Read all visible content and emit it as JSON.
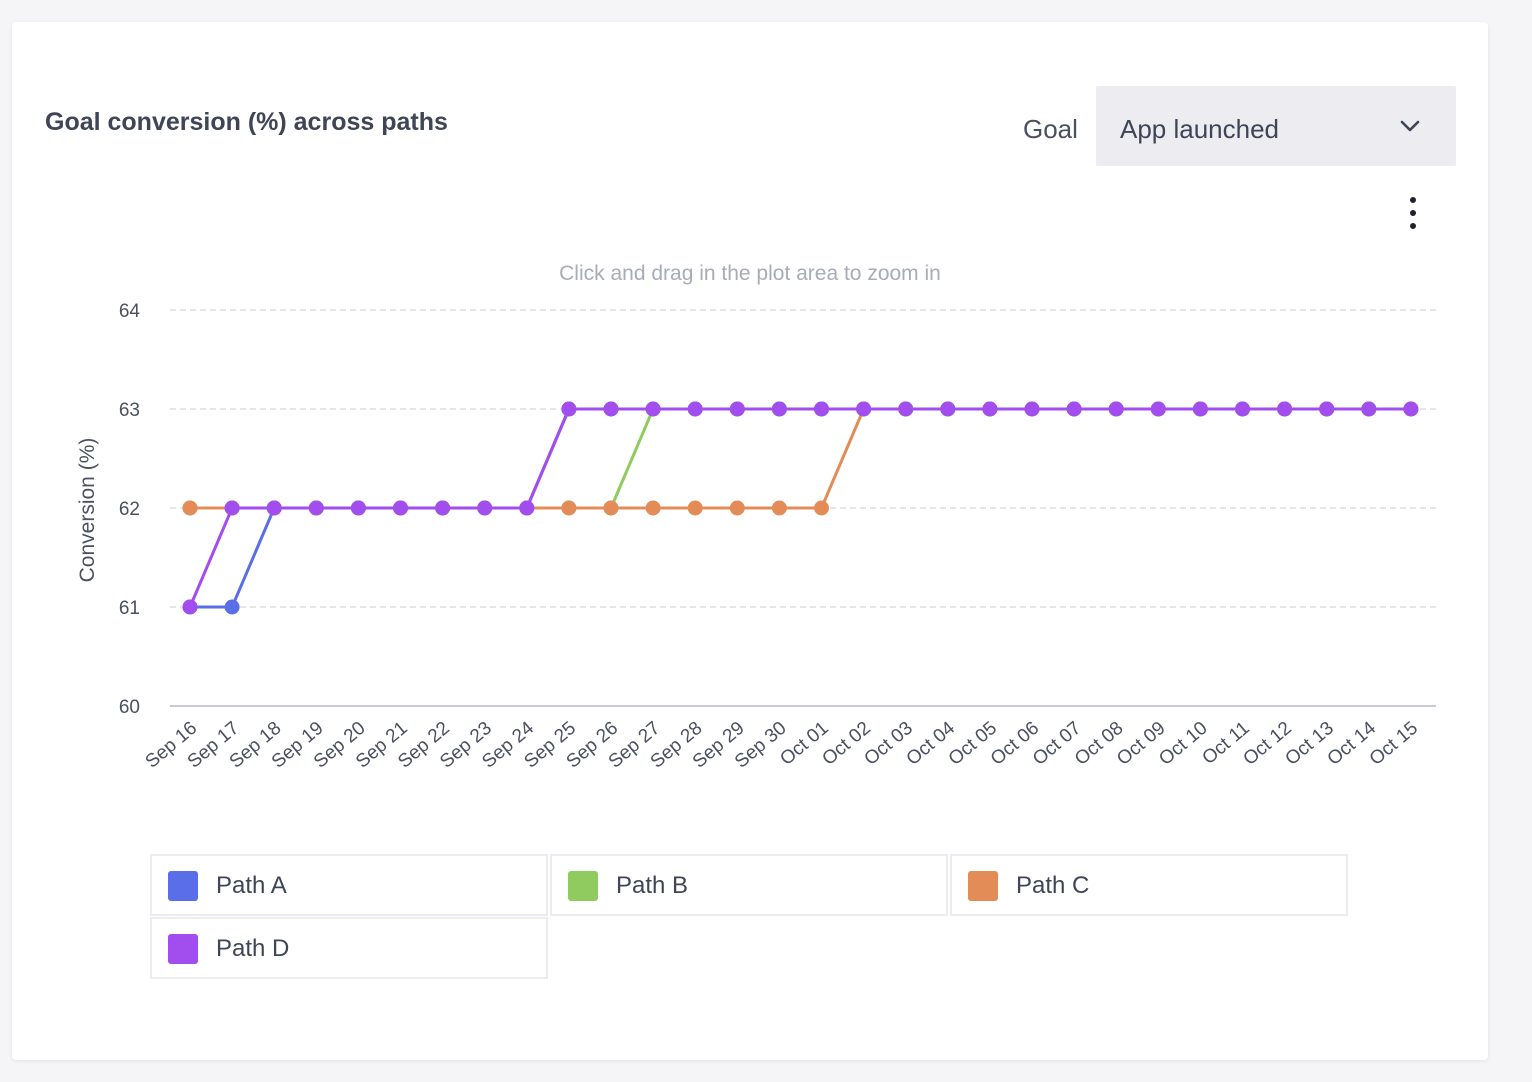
{
  "card": {
    "title": "Goal conversion (%) across paths",
    "goal_label": "Goal",
    "goal_value": "App launched",
    "hint": "Click and drag in the plot area to zoom in",
    "kebab_icon": "kebab-menu-icon",
    "chevron_icon": "chevron-down-icon"
  },
  "chart_data": {
    "type": "line",
    "title": "Goal conversion (%) across paths",
    "xlabel": "",
    "ylabel": "Conversion (%)",
    "ylim": [
      60,
      64
    ],
    "yticks": [
      60,
      61,
      62,
      63,
      64
    ],
    "grid": true,
    "legend_position": "bottom",
    "categories": [
      "Sep 16",
      "Sep 17",
      "Sep 18",
      "Sep 19",
      "Sep 20",
      "Sep 21",
      "Sep 22",
      "Sep 23",
      "Sep 24",
      "Sep 25",
      "Sep 26",
      "Sep 27",
      "Sep 28",
      "Sep 29",
      "Sep 30",
      "Oct 01",
      "Oct 02",
      "Oct 03",
      "Oct 04",
      "Oct 05",
      "Oct 06",
      "Oct 07",
      "Oct 08",
      "Oct 09",
      "Oct 10",
      "Oct 11",
      "Oct 12",
      "Oct 13",
      "Oct 14",
      "Oct 15"
    ],
    "series": [
      {
        "name": "Path A",
        "color": "#5a6ee8",
        "values": [
          61,
          61,
          62,
          62,
          62,
          62,
          62,
          62,
          62,
          63,
          63,
          63,
          63,
          63,
          63,
          63,
          63,
          63,
          63,
          63,
          63,
          63,
          63,
          63,
          63,
          63,
          63,
          63,
          63,
          63
        ]
      },
      {
        "name": "Path B",
        "color": "#8fcb5e",
        "values": [
          62,
          62,
          62,
          62,
          62,
          62,
          62,
          62,
          62,
          62,
          62,
          63,
          63,
          63,
          63,
          63,
          63,
          63,
          63,
          63,
          63,
          63,
          63,
          63,
          63,
          63,
          63,
          63,
          63,
          63
        ]
      },
      {
        "name": "Path C",
        "color": "#e38c58",
        "values": [
          62,
          62,
          62,
          62,
          62,
          62,
          62,
          62,
          62,
          62,
          62,
          62,
          62,
          62,
          62,
          62,
          63,
          63,
          63,
          63,
          63,
          63,
          63,
          63,
          63,
          63,
          63,
          63,
          63,
          63
        ]
      },
      {
        "name": "Path D",
        "color": "#a24ded",
        "values": [
          61,
          62,
          62,
          62,
          62,
          62,
          62,
          62,
          62,
          63,
          63,
          63,
          63,
          63,
          63,
          63,
          63,
          63,
          63,
          63,
          63,
          63,
          63,
          63,
          63,
          63,
          63,
          63,
          63,
          63
        ]
      }
    ]
  }
}
